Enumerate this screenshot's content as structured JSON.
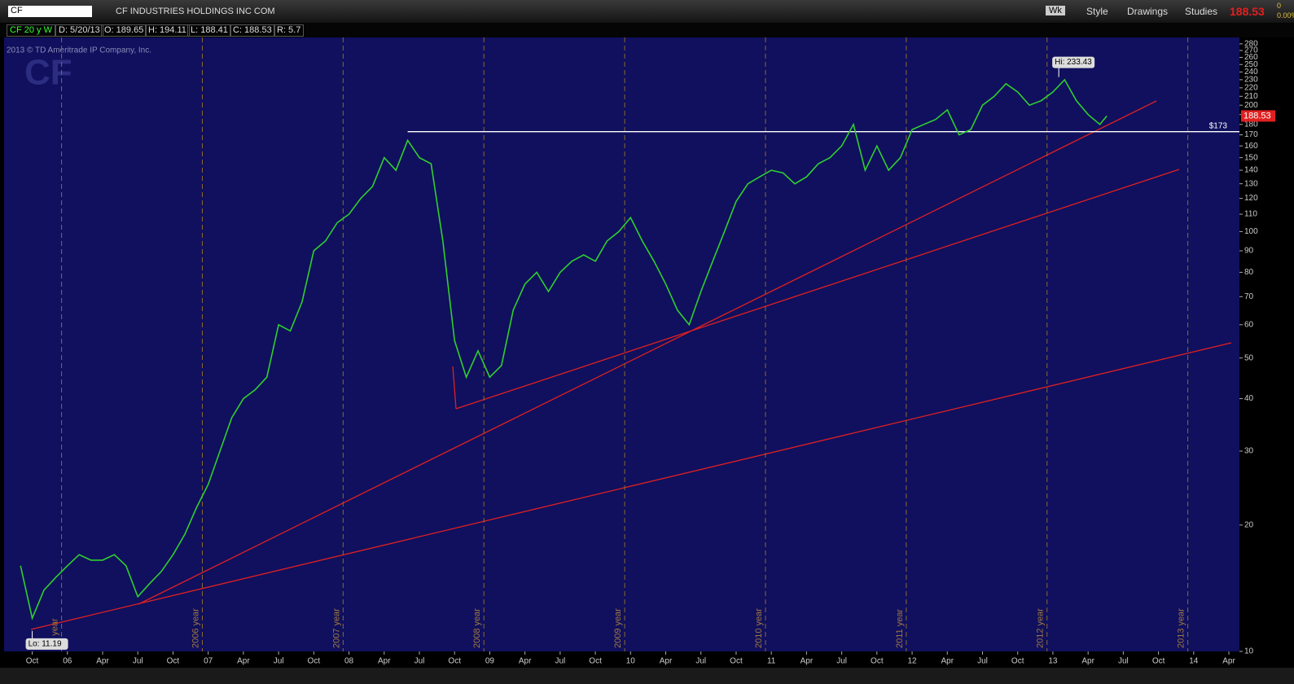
{
  "toolbar": {
    "symbol": "CF",
    "company": "CF INDUSTRIES HOLDINGS INC COM",
    "buttons": [
      "Wk",
      "Style",
      "Drawings",
      "Studies"
    ],
    "last": "188.53",
    "change": "0",
    "change_pct": "0.00%"
  },
  "info_bar": [
    "CF 20 y W",
    "D: 5/20/13",
    "O: 189.65",
    "H: 194.11",
    "L: 188.41",
    "C: 188.53",
    "R: 5.7"
  ],
  "watermark": "2013 © TD Ameritrade IP Company, Inc.",
  "logo": "CF",
  "chart_data": {
    "type": "line",
    "color": "#2fcf2f",
    "x": [
      -1,
      0,
      1,
      2,
      3,
      4,
      5,
      6,
      7,
      8,
      9,
      10,
      11,
      12,
      13,
      14,
      15,
      16,
      17,
      18,
      19,
      20,
      21,
      22,
      23,
      24,
      25,
      26,
      27,
      28,
      29,
      30,
      31,
      32,
      33,
      34,
      35,
      36,
      37,
      38,
      39,
      40,
      41,
      42,
      43,
      44,
      45,
      46,
      47,
      48,
      49,
      50,
      51,
      52,
      53,
      54,
      55,
      56,
      57,
      58,
      59,
      60,
      61,
      62,
      63,
      64,
      65,
      66,
      67,
      68,
      69,
      70,
      71,
      72,
      73,
      74,
      75,
      76,
      77,
      78,
      79,
      80,
      81,
      82,
      83,
      84,
      85,
      86,
      87,
      88,
      89,
      90,
      91,
      91.6
    ],
    "values": [
      16,
      12,
      14,
      15,
      16,
      17,
      16.5,
      16.5,
      17,
      16,
      13.5,
      14.5,
      15.5,
      17,
      19,
      22,
      25,
      30,
      36,
      40,
      42,
      45,
      60,
      58,
      68,
      90,
      95,
      105,
      110,
      120,
      128,
      150,
      140,
      165,
      150,
      145,
      95,
      55,
      45,
      52,
      45,
      48,
      65,
      75,
      80,
      72,
      80,
      85,
      88,
      85,
      95,
      100,
      108,
      95,
      85,
      75,
      65,
      60,
      72,
      85,
      100,
      118,
      130,
      135,
      140,
      138,
      130,
      135,
      145,
      150,
      160,
      180,
      140,
      160,
      140,
      150,
      175,
      180,
      185,
      195,
      170,
      175,
      200,
      210,
      225,
      215,
      200,
      205,
      215,
      230,
      205,
      190,
      180,
      188.53
    ],
    "xlim": [
      -2.4,
      102.9
    ],
    "xticks": [
      {
        "value": 0,
        "label": "Oct"
      },
      {
        "value": 3,
        "label": "06"
      },
      {
        "value": 6,
        "label": "Apr"
      },
      {
        "value": 9,
        "label": "Jul"
      },
      {
        "value": 12,
        "label": "Oct"
      },
      {
        "value": 15,
        "label": "07"
      },
      {
        "value": 18,
        "label": "Apr"
      },
      {
        "value": 21,
        "label": "Jul"
      },
      {
        "value": 24,
        "label": "Oct"
      },
      {
        "value": 27,
        "label": "08"
      },
      {
        "value": 30,
        "label": "Apr"
      },
      {
        "value": 33,
        "label": "Jul"
      },
      {
        "value": 36,
        "label": "Oct"
      },
      {
        "value": 39,
        "label": "09"
      },
      {
        "value": 42,
        "label": "Apr"
      },
      {
        "value": 45,
        "label": "Jul"
      },
      {
        "value": 48,
        "label": "Oct"
      },
      {
        "value": 51,
        "label": "10"
      },
      {
        "value": 54,
        "label": "Apr"
      },
      {
        "value": 57,
        "label": "Jul"
      },
      {
        "value": 60,
        "label": "Oct"
      },
      {
        "value": 63,
        "label": "11"
      },
      {
        "value": 66,
        "label": "Apr"
      },
      {
        "value": 69,
        "label": "Jul"
      },
      {
        "value": 72,
        "label": "Oct"
      },
      {
        "value": 75,
        "label": "12"
      },
      {
        "value": 78,
        "label": "Apr"
      },
      {
        "value": 81,
        "label": "Jul"
      },
      {
        "value": 84,
        "label": "Oct"
      },
      {
        "value": 87,
        "label": "13"
      },
      {
        "value": 90,
        "label": "Apr"
      },
      {
        "value": 93,
        "label": "Jul"
      },
      {
        "value": 96,
        "label": "Oct"
      },
      {
        "value": 99,
        "label": "14"
      },
      {
        "value": 102,
        "label": "Apr"
      }
    ],
    "ylim": [
      10,
      290
    ],
    "log_scale": true,
    "yticks": [
      10,
      20,
      30,
      40,
      50,
      60,
      70,
      80,
      90,
      100,
      110,
      120,
      130,
      140,
      150,
      160,
      170,
      180,
      190,
      200,
      210,
      220,
      230,
      240,
      250,
      260,
      270,
      280
    ],
    "year_markers": [
      {
        "value": 2.5,
        "label": "05 year"
      },
      {
        "value": 14.5,
        "label": "2006 year"
      },
      {
        "value": 26.5,
        "label": "2007 year"
      },
      {
        "value": 38.5,
        "label": "2008 year"
      },
      {
        "value": 50.5,
        "label": "2009 year"
      },
      {
        "value": 62.5,
        "label": "2010 year"
      },
      {
        "value": 74.5,
        "label": "2011 year"
      },
      {
        "value": 86.5,
        "label": "2012 year"
      },
      {
        "value": 98.5,
        "label": "2013 year"
      }
    ],
    "hline": {
      "value": 173,
      "label": "$173"
    },
    "annotations": [
      {
        "x": 87.5,
        "value": 233.43,
        "label": "Hi: 233.43"
      },
      {
        "x": 0,
        "value": 11.19,
        "label": "Lo: 11.19"
      }
    ],
    "last_price": {
      "value": 188.53,
      "label": "188.53"
    }
  }
}
